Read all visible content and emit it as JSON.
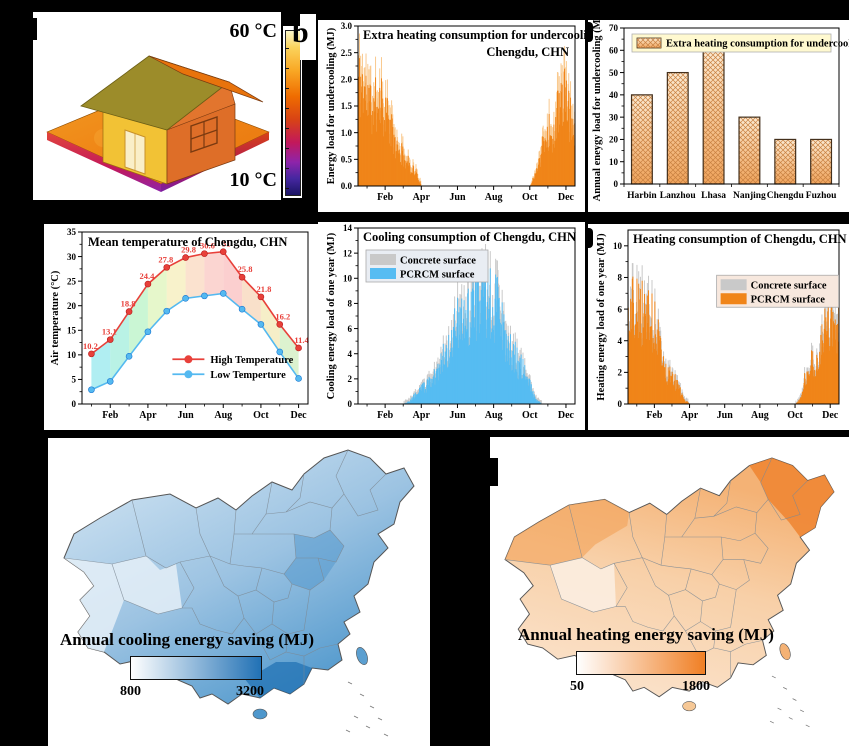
{
  "figure": {
    "house_panel": {
      "top_label": "60 °C",
      "bottom_label": "10 °C"
    },
    "maps": {
      "cooling": {
        "label": "Annual cooling energy saving (MJ)",
        "min": "800",
        "max": "3200",
        "accent": "#2171B5"
      },
      "heating": {
        "label": "Annual heating energy saving (MJ)",
        "min": "50",
        "max": "1800",
        "accent": "#F07F24"
      }
    }
  },
  "chart_data": [
    {
      "id": "undercooling_daily",
      "type": "bar",
      "title": "Extra heating consumption for undercooling",
      "subtitle": "Chengdu, CHN",
      "ylabel": "Energy load for undercooling (MJ)",
      "ylim": [
        0,
        3.0
      ],
      "yticks": [
        0.0,
        0.5,
        1.0,
        1.5,
        2.0,
        2.5,
        3.0
      ],
      "ydecimals": 1,
      "xtick_labels": [
        "Feb",
        "Apr",
        "Jun",
        "Aug",
        "Oct",
        "Dec"
      ],
      "grid": false,
      "legend_position": "none",
      "series": [
        {
          "name": "halo",
          "color": "#F9C98F",
          "scale": 1.12
        },
        {
          "name": "Energy load",
          "color": "#F08519",
          "scale": 0.95
        }
      ],
      "monthly_envelope_MJ": [
        2.75,
        2.35,
        2.0,
        2.45,
        2.05,
        1.45,
        0.95,
        0.8,
        0.55,
        0.38,
        0,
        0,
        0,
        0,
        0,
        0,
        0,
        0,
        0,
        0,
        0,
        0,
        0,
        0,
        0,
        0,
        0,
        0,
        0,
        0.35,
        1.05,
        1.5,
        1.25,
        2.5,
        2.25,
        1.6
      ],
      "seed": 11
    },
    {
      "id": "undercooling_annual",
      "type": "bar",
      "legend": "Extra heating consumption for undercooling",
      "ylabel": "Annual eneygy load for undercooling (MJ)",
      "ylim": [
        0,
        70
      ],
      "yticks": [
        0,
        10,
        20,
        30,
        40,
        50,
        60,
        70
      ],
      "ydecimals": 0,
      "categories": [
        "Harbin",
        "Lanzhou",
        "Lhasa",
        "Nanjing",
        "Chengdu",
        "Fuzhou"
      ],
      "values": [
        40,
        50,
        60,
        30,
        20,
        20
      ],
      "grid": false,
      "legend_position": "top",
      "bar_gradient": [
        "#FBEAD2",
        "#F0A45C"
      ],
      "hatch_color": "#C88040",
      "legend_bg": "#FFF9D0"
    },
    {
      "id": "mean_temperature",
      "type": "line",
      "title": "Mean temperature of Chengdu, CHN",
      "ylabel": "Air temperature (°C)",
      "ylim": [
        0,
        35
      ],
      "yticks": [
        0,
        5,
        10,
        15,
        20,
        25,
        30,
        35
      ],
      "ydecimals": 0,
      "xtick_labels": [
        "Feb",
        "Apr",
        "Jun",
        "Aug",
        "Oct",
        "Dec"
      ],
      "grid": false,
      "legend_position": "inside-bottom",
      "series": [
        {
          "name": "High Temperature",
          "color": "#E8403A",
          "values": [
            10.2,
            13.1,
            18.8,
            24.4,
            27.8,
            29.8,
            30.6,
            31,
            25.8,
            21.8,
            16.2,
            11.4
          ],
          "point_labels": [
            "10.2",
            "13.1",
            "18.8",
            "24.4",
            "27.8",
            "29.8",
            "30.6",
            "31",
            "25.8",
            "21.8",
            "16.2",
            "11.4"
          ]
        },
        {
          "name": "Low Temperture",
          "color": "#54B9F0",
          "values": [
            2.9,
            4.6,
            9.7,
            14.7,
            18.9,
            21.5,
            22.0,
            22.5,
            19.3,
            16.2,
            10.6,
            5.2
          ]
        }
      ],
      "band_colors": [
        "#6FE0E8",
        "#7FE8D0",
        "#9FEFB0",
        "#D2F0A0",
        "#F2E8A0",
        "#F8CBA8",
        "#F8B3AC",
        "#F8A8A8",
        "#F4C79E",
        "#EFE09A",
        "#BFE8A8"
      ]
    },
    {
      "id": "cooling_daily",
      "type": "bar",
      "title": "Cooling consumption of Chengdu, CHN",
      "ylabel": "Cooling energy load of one year (MJ)",
      "ylim": [
        0,
        14
      ],
      "yticks": [
        0,
        2,
        4,
        6,
        8,
        10,
        12,
        14
      ],
      "ydecimals": 0,
      "xtick_labels": [
        "Feb",
        "Apr",
        "Jun",
        "Aug",
        "Oct",
        "Dec"
      ],
      "grid": false,
      "legend_position": "upper-left",
      "legend_bg": "#E9EDF3",
      "series": [
        {
          "name": "Concrete surface",
          "color": "#C9C9C9",
          "scale": 1.12
        },
        {
          "name": "PCRCM surface",
          "color": "#56BCF2",
          "scale": 1.0
        }
      ],
      "monthly_envelope_MJ": [
        0,
        0,
        0,
        0,
        0,
        0,
        0,
        0,
        0.3,
        1.0,
        1.6,
        2.1,
        3.0,
        4.4,
        5.6,
        7.2,
        8.6,
        9.4,
        9.8,
        10.6,
        11.2,
        11.5,
        10.9,
        9.6,
        7.0,
        5.6,
        4.4,
        3.8,
        2.0,
        0.5,
        0,
        0,
        0,
        0,
        0,
        0
      ],
      "seed": 23
    },
    {
      "id": "heating_daily",
      "type": "bar",
      "title": "Heating consumption of Chengdu, CHN",
      "ylabel": "Heating energy load of one year (MJ)",
      "ylim": [
        0,
        11
      ],
      "yticks": [
        0,
        2,
        4,
        6,
        8,
        10
      ],
      "ydecimals": 0,
      "xtick_labels": [
        "Feb",
        "Apr",
        "Jun",
        "Aug",
        "Oct",
        "Dec"
      ],
      "grid": false,
      "legend_position": "center-right",
      "legend_bg": "#F7E8DE",
      "series": [
        {
          "name": "Concrete surface",
          "color": "#C9C9C9",
          "scale": 1.1
        },
        {
          "name": "PCRCM surface",
          "color": "#F08519",
          "scale": 1.0
        }
      ],
      "monthly_envelope_MJ": [
        8.3,
        8.05,
        7.8,
        8.1,
        6.6,
        6.0,
        2.7,
        2.3,
        1.5,
        0.4,
        0,
        0,
        0,
        0,
        0,
        0,
        0,
        0,
        0,
        0,
        0,
        0,
        0,
        0,
        0,
        0,
        0,
        0,
        0,
        0.5,
        3.0,
        3.7,
        3.3,
        6.6,
        7.3,
        7.0
      ],
      "seed": 37
    }
  ]
}
